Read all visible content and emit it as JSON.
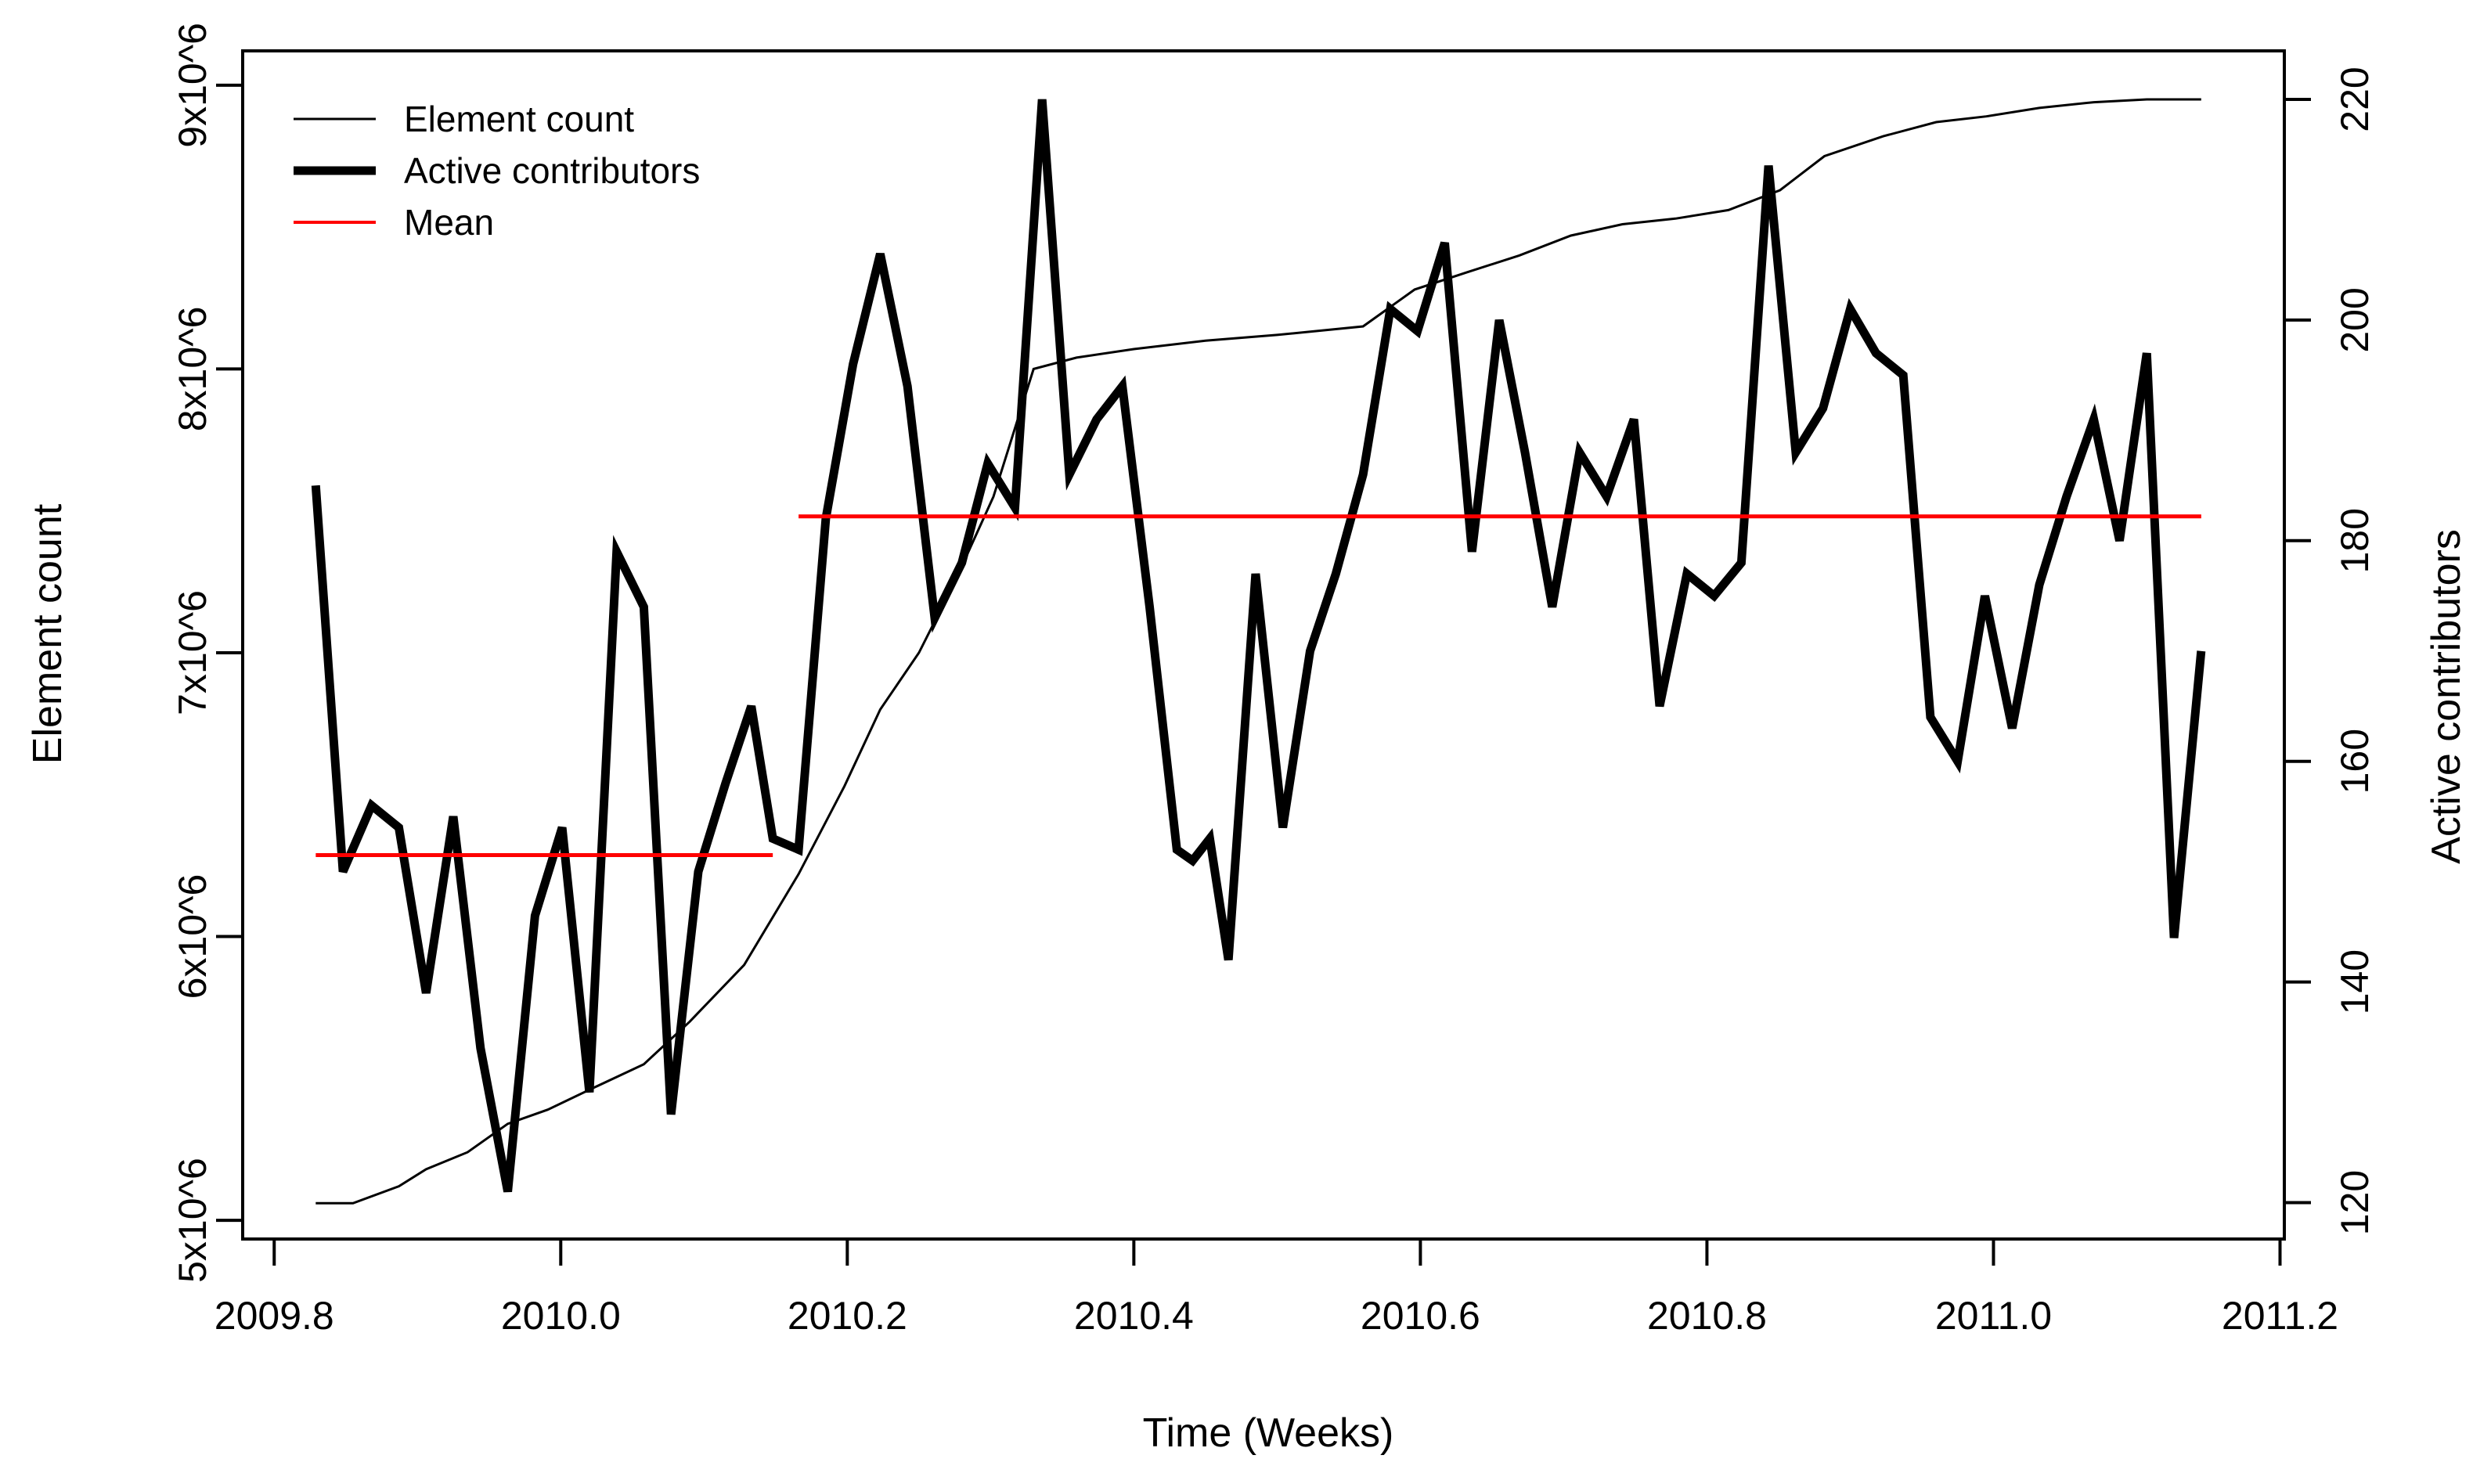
{
  "figure": {
    "background": "#ffffff",
    "axis_color": "#000000"
  },
  "legend": {
    "position": "top-left",
    "items": [
      {
        "label": "Element count",
        "color": "#000000",
        "thickness": "thin"
      },
      {
        "label": "Active contributors",
        "color": "#000000",
        "thickness": "thick"
      },
      {
        "label": "Mean",
        "color": "#ff0000",
        "thickness": "thin"
      }
    ]
  },
  "chart_data": {
    "type": "line",
    "title": "",
    "xlabel": "Time (Weeks)",
    "ylabel_left": "Element count",
    "ylabel_right": "Active contributors",
    "grid": false,
    "legend_position": "top-left",
    "xlim": [
      2009.778,
      2011.203
    ],
    "ylim_left": [
      4934000,
      9121000
    ],
    "ylim_right": [
      116.7,
      224.4
    ],
    "x_ticks": [
      2009.8,
      2010.0,
      2010.2,
      2010.4,
      2010.6,
      2010.8,
      2011.0,
      2011.2
    ],
    "x_tick_labels": [
      "2009.8",
      "2010.0",
      "2010.2",
      "2010.4",
      "2010.6",
      "2010.8",
      "2011.0",
      "2011.2"
    ],
    "y_ticks_left": [
      5000000,
      6000000,
      7000000,
      8000000,
      9000000
    ],
    "y_tick_labels_left": [
      "5x10^6",
      "6x10^6",
      "7x10^6",
      "8x10^6",
      "9x10^6"
    ],
    "y_ticks_right": [
      120,
      140,
      160,
      180,
      200,
      220
    ],
    "y_tick_labels_right": [
      "120",
      "140",
      "160",
      "180",
      "200",
      "220"
    ],
    "series": [
      {
        "name": "Element count",
        "axis": "left",
        "color": "#000000",
        "width": 3,
        "x": [
          2009.829,
          2009.855,
          2009.887,
          2009.906,
          2009.935,
          2009.963,
          2009.991,
          2010.02,
          2010.058,
          2010.09,
          2010.128,
          2010.166,
          2010.198,
          2010.223,
          2010.25,
          2010.275,
          2010.302,
          2010.33,
          2010.36,
          2010.4,
          2010.45,
          2010.5,
          2010.56,
          2010.596,
          2010.632,
          2010.669,
          2010.705,
          2010.741,
          2010.778,
          2010.815,
          2010.851,
          2010.882,
          2010.923,
          2010.96,
          2010.995,
          2011.032,
          2011.07,
          2011.107,
          2011.145
        ],
        "y": [
          5060000,
          5060000,
          5120000,
          5180000,
          5240000,
          5340000,
          5390000,
          5460000,
          5550000,
          5700000,
          5900000,
          6220000,
          6530000,
          6800000,
          7000000,
          7250000,
          7550000,
          8000000,
          8040000,
          8070000,
          8100000,
          8120000,
          8150000,
          8280000,
          8340000,
          8400000,
          8470000,
          8510000,
          8530000,
          8560000,
          8630000,
          8750000,
          8820000,
          8870000,
          8890000,
          8920000,
          8940000,
          8950000,
          8950000
        ]
      },
      {
        "name": "Active contributors",
        "axis": "right",
        "color": "#000000",
        "width": 11,
        "x": [
          2009.829,
          2009.848,
          2009.868,
          2009.887,
          2009.906,
          2009.925,
          2009.944,
          2009.963,
          2009.982,
          2010.001,
          2010.02,
          2010.039,
          2010.058,
          2010.077,
          2010.096,
          2010.115,
          2010.133,
          2010.148,
          2010.166,
          2010.185,
          2010.204,
          2010.223,
          2010.242,
          2010.261,
          2010.28,
          2010.298,
          2010.317,
          2010.336,
          2010.355,
          2010.374,
          2010.392,
          2010.411,
          2010.43,
          2010.441,
          2010.453,
          2010.466,
          2010.485,
          2010.504,
          2010.523,
          2010.541,
          2010.56,
          2010.579,
          2010.598,
          2010.617,
          2010.636,
          2010.655,
          2010.673,
          2010.692,
          2010.711,
          2010.73,
          2010.749,
          2010.767,
          2010.786,
          2010.805,
          2010.824,
          2010.843,
          2010.862,
          2010.881,
          2010.9,
          2010.918,
          2010.937,
          2010.956,
          2010.975,
          2010.994,
          2011.013,
          2011.032,
          2011.051,
          2011.07,
          2011.088,
          2011.107,
          2011.126,
          2011.145
        ],
        "y": [
          185,
          150,
          156,
          154,
          139,
          155,
          134,
          121,
          146,
          154,
          130,
          179,
          174,
          128,
          150,
          158,
          165,
          153,
          152,
          182,
          196,
          206,
          194,
          173,
          178,
          187,
          183,
          220,
          186,
          191,
          194,
          174,
          152,
          151,
          153,
          142,
          177,
          154,
          170,
          177,
          186,
          201,
          199,
          207,
          179,
          200,
          188,
          174,
          188,
          184,
          191,
          165,
          177,
          175,
          178,
          214,
          188,
          192,
          201,
          197,
          195,
          164,
          160,
          175,
          163,
          176,
          184,
          191,
          180,
          197,
          144,
          170
        ]
      },
      {
        "name": "Mean",
        "axis": "right",
        "color": "#ff0000",
        "width": 5,
        "segments": [
          {
            "x": [
              2009.829,
              2010.148
            ],
            "y": 151.5
          },
          {
            "x": [
              2010.166,
              2011.145
            ],
            "y": 182.2
          }
        ]
      }
    ]
  }
}
